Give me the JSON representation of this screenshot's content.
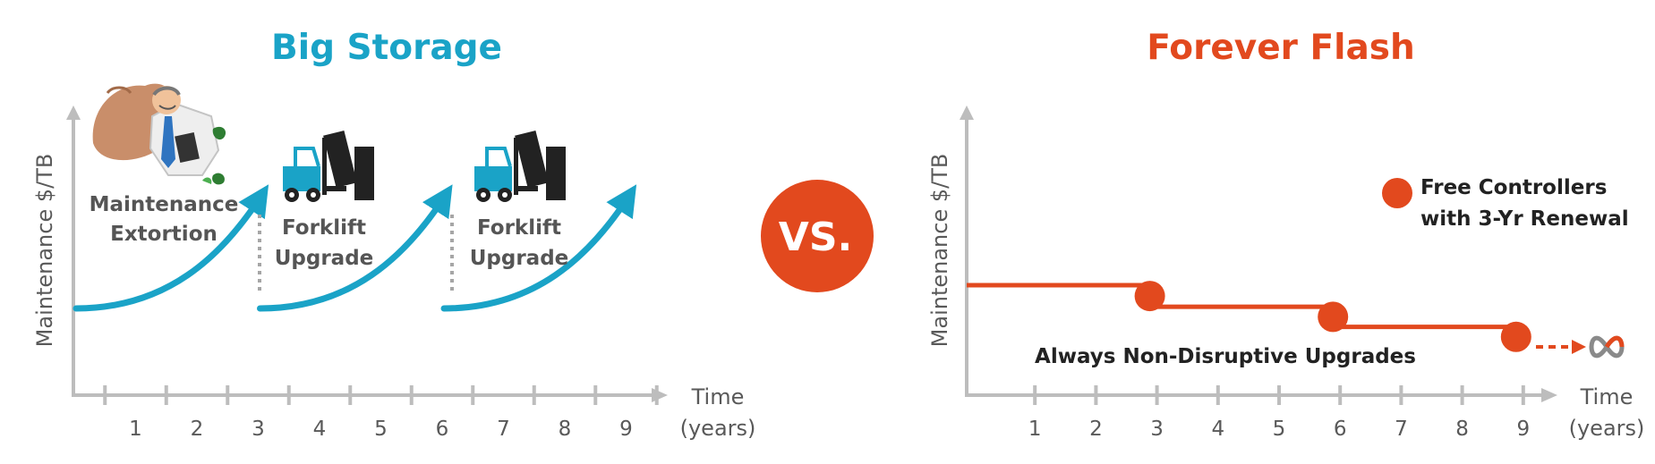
{
  "colors": {
    "teal": "#1aa3c7",
    "orange": "#e2491e",
    "axis": "#bdbdbd",
    "text": "#595959",
    "dark": "#222222"
  },
  "vs_badge": {
    "label": "VS."
  },
  "chart_data": [
    {
      "type": "line",
      "title": "Big Storage",
      "ylabel": "Maintenance $/TB",
      "xlabel": [
        "Time",
        "(years)"
      ],
      "x_ticks": [
        "1",
        "2",
        "3",
        "4",
        "5",
        "6",
        "7",
        "8",
        "9"
      ],
      "y_scale": "qualitative",
      "series": [
        {
          "x": [
            0,
            1,
            2,
            3
          ],
          "y": [
            0.0,
            0.08,
            0.3,
            1.0
          ]
        },
        {
          "x": [
            3,
            4,
            5,
            6
          ],
          "y": [
            0.0,
            0.08,
            0.3,
            1.0
          ]
        },
        {
          "x": [
            6,
            7,
            8,
            9
          ],
          "y": [
            0.0,
            0.08,
            0.3,
            1.0
          ]
        }
      ],
      "annotations": [
        {
          "lines": [
            "Maintenance",
            "Extortion"
          ],
          "icon": "businessman-money-icon"
        },
        {
          "lines": [
            "Forklift",
            "Upgrade"
          ],
          "icon": "forklift-icon"
        },
        {
          "lines": [
            "Forklift",
            "Upgrade"
          ],
          "icon": "forklift-icon"
        }
      ]
    },
    {
      "type": "line",
      "title": "Forever Flash",
      "ylabel": "Maintenance $/TB",
      "xlabel": [
        "Time",
        "(years)"
      ],
      "x_ticks": [
        "1",
        "2",
        "3",
        "4",
        "5",
        "6",
        "7",
        "8",
        "9"
      ],
      "y_scale": "qualitative",
      "series": [
        {
          "x": [
            0,
            3,
            6,
            9
          ],
          "y": [
            1.0,
            0.86,
            0.73,
            0.6
          ],
          "markers_at": [
            3,
            6,
            9
          ],
          "continues": "infinity"
        }
      ],
      "legend": {
        "marker": "circle",
        "lines": [
          "Free Controllers",
          "with 3-Yr Renewal"
        ],
        "position": "top-right"
      },
      "annotations": [
        {
          "text": "Always Non-Disruptive Upgrades"
        }
      ]
    }
  ]
}
